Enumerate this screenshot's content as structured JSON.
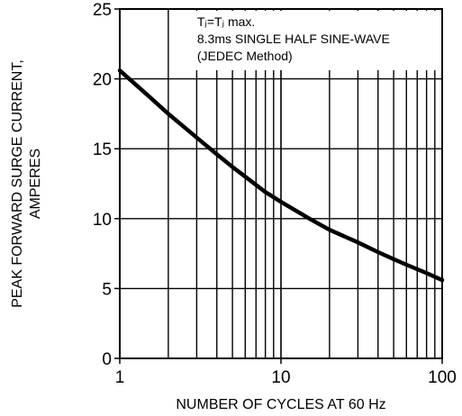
{
  "chart_data": {
    "type": "line",
    "title": "",
    "xlabel": "NUMBER OF CYCLES AT 60 Hz",
    "ylabel": [
      "PEAK FORWARD SURGE CURRENT,",
      "AMPERES"
    ],
    "xscale": "log",
    "xlim": [
      1,
      100
    ],
    "ylim": [
      0,
      25
    ],
    "x_ticks": [
      1,
      10,
      100
    ],
    "x_tick_labels": [
      "1",
      "10",
      "100"
    ],
    "y_ticks": [
      0,
      5,
      10,
      15,
      20,
      25
    ],
    "y_tick_labels": [
      "0",
      "5",
      "10",
      "15",
      "20",
      "25"
    ],
    "grid": true,
    "annotation": {
      "position": "top-right",
      "lines": [
        "Tⱼ=Tⱼ max.",
        "8.3ms SINGLE HALF SINE-WAVE",
        "(JEDEC Method)"
      ]
    },
    "series": [
      {
        "color": "#000000",
        "x": [
          1,
          1.5,
          2,
          3,
          4,
          5,
          6,
          8,
          10,
          15,
          20,
          30,
          40,
          50,
          60,
          80,
          100
        ],
        "y": [
          20.6,
          18.8,
          17.5,
          15.8,
          14.6,
          13.7,
          13.0,
          11.9,
          11.2,
          10.0,
          9.2,
          8.3,
          7.6,
          7.1,
          6.7,
          6.1,
          5.6
        ]
      }
    ]
  }
}
